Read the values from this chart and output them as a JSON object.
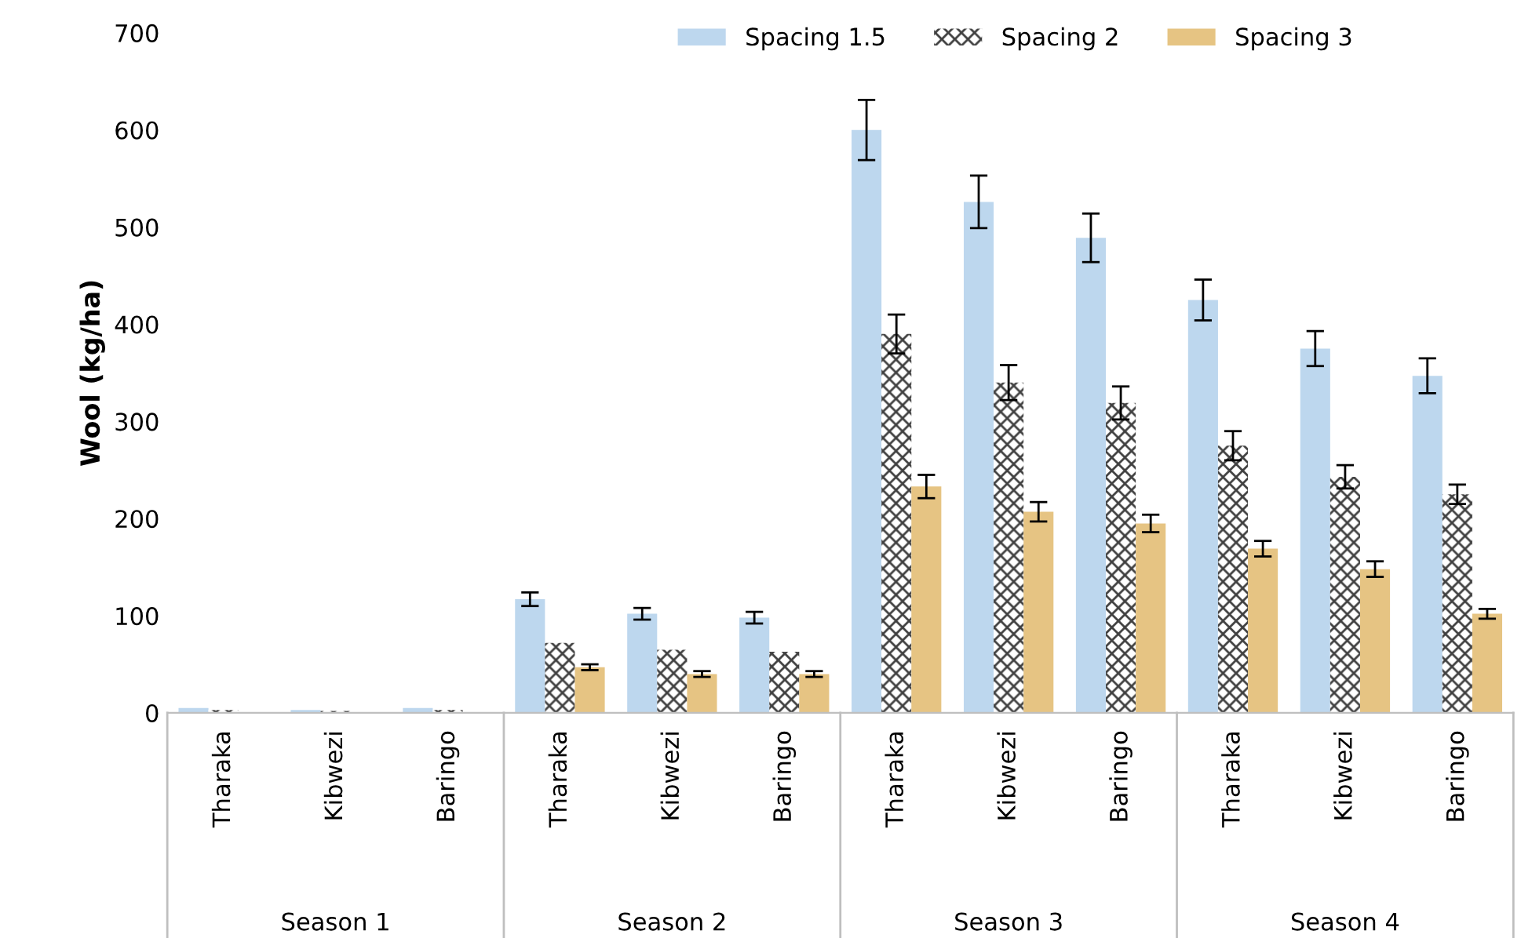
{
  "chart_data": {
    "type": "bar",
    "ylabel": "Wool (kg/ha)",
    "categories": [
      "Tharaka",
      "Kibwezi",
      "Baringo",
      "Tharaka",
      "Kibwezi",
      "Baringo",
      "Tharaka",
      "Kibwezi",
      "Baringo",
      "Tharaka",
      "Kibwezi",
      "Baringo"
    ],
    "annotations": [
      "Season 1",
      "Season 2",
      "Season 3",
      "Season 4"
    ],
    "series": [
      {
        "name": "Spacing 1.5",
        "color": "#bdd7ee",
        "values": [
          5,
          3,
          5,
          117,
          102,
          98,
          600,
          526,
          489,
          425,
          375,
          347
        ],
        "errors": [
          null,
          null,
          null,
          7,
          6,
          6,
          31,
          27,
          25,
          21,
          18,
          18
        ]
      },
      {
        "name": "Spacing 2",
        "color": "#404040",
        "values": [
          3,
          2,
          3,
          72,
          65,
          63,
          390,
          340,
          319,
          275,
          243,
          225
        ],
        "errors": [
          null,
          null,
          null,
          null,
          null,
          null,
          20,
          18,
          17,
          15,
          12,
          10
        ]
      },
      {
        "name": "Spacing 3",
        "color": "#e6c483",
        "values": [
          null,
          null,
          null,
          47,
          40,
          40,
          233,
          207,
          195,
          169,
          148,
          102
        ],
        "errors": [
          null,
          null,
          null,
          3,
          3,
          3,
          12,
          10,
          9,
          8,
          8,
          5
        ]
      }
    ],
    "ylim": [
      0,
      700
    ],
    "yticks": [
      0,
      100,
      200,
      300,
      400,
      500,
      600,
      700
    ],
    "grid": false,
    "legend": "top"
  }
}
